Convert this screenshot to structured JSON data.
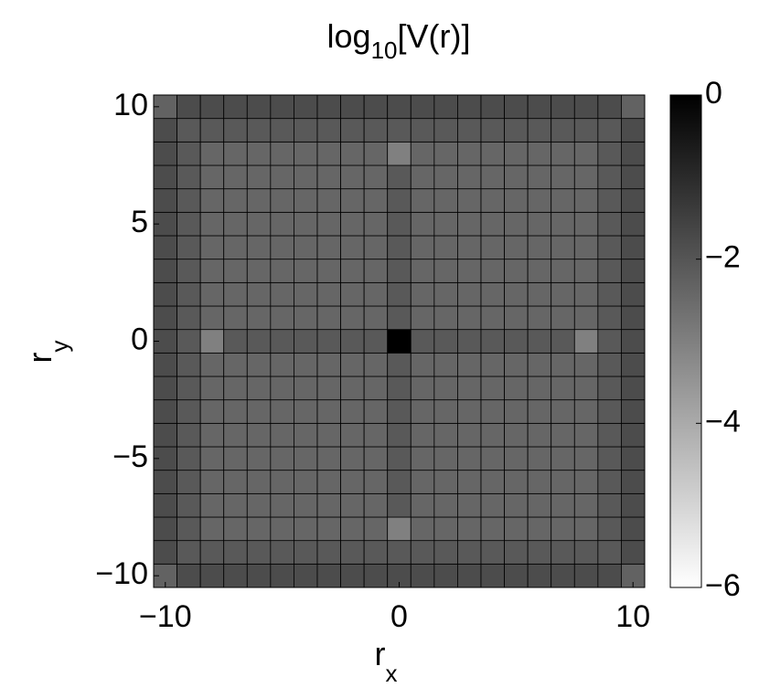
{
  "chart_data": {
    "type": "heatmap",
    "title": {
      "main": "log",
      "sub": "10",
      "rest": "[V(r)]"
    },
    "x_label": {
      "main": "r",
      "sub": "x"
    },
    "y_label": {
      "main": "r",
      "sub": "y"
    },
    "x": [
      -10,
      -9,
      -8,
      -7,
      -6,
      -5,
      -4,
      -3,
      -2,
      -1,
      0,
      1,
      2,
      3,
      4,
      5,
      6,
      7,
      8,
      9,
      10
    ],
    "y": [
      -10,
      -9,
      -8,
      -7,
      -6,
      -5,
      -4,
      -3,
      -2,
      -1,
      0,
      1,
      2,
      3,
      4,
      5,
      6,
      7,
      8,
      9,
      10
    ],
    "xlim": [
      -10.5,
      10.5
    ],
    "ylim": [
      -10.5,
      10.5
    ],
    "xticks": [
      {
        "value": -10,
        "label": "−10"
      },
      0,
      10
    ],
    "yticks": [
      {
        "value": -10,
        "label": "−10"
      },
      {
        "value": -5,
        "label": "−5"
      },
      0,
      5,
      10
    ],
    "colormap": "gray",
    "clim": [
      -6,
      0
    ],
    "cticks": [
      {
        "value": -6,
        "label": "−6"
      },
      {
        "value": -4,
        "label": "−4"
      },
      {
        "value": -2,
        "label": "−2"
      },
      0
    ],
    "z": [
      [
        -2.3,
        -1.8,
        -1.8,
        -1.8,
        -1.8,
        -1.8,
        -1.8,
        -1.8,
        -1.8,
        -1.8,
        -1.8,
        -1.8,
        -1.8,
        -1.8,
        -1.8,
        -1.8,
        -1.8,
        -1.8,
        -1.8,
        -1.8,
        -2.3
      ],
      [
        -1.8,
        -2.1,
        -2.1,
        -2.1,
        -2.1,
        -2.1,
        -2.1,
        -2.1,
        -2.1,
        -2.1,
        -2.1,
        -2.1,
        -2.1,
        -2.1,
        -2.1,
        -2.1,
        -2.1,
        -2.1,
        -2.1,
        -2.1,
        -1.8
      ],
      [
        -1.8,
        -2.1,
        -2.4,
        -2.4,
        -2.4,
        -2.4,
        -2.4,
        -2.4,
        -2.4,
        -2.4,
        -3.0,
        -2.4,
        -2.4,
        -2.4,
        -2.4,
        -2.4,
        -2.4,
        -2.4,
        -2.4,
        -2.1,
        -1.8
      ],
      [
        -1.8,
        -2.1,
        -2.4,
        -2.4,
        -2.4,
        -2.4,
        -2.4,
        -2.4,
        -2.4,
        -2.4,
        -2.1,
        -2.4,
        -2.4,
        -2.4,
        -2.4,
        -2.4,
        -2.4,
        -2.4,
        -2.4,
        -2.1,
        -1.8
      ],
      [
        -1.8,
        -2.1,
        -2.4,
        -2.4,
        -2.4,
        -2.4,
        -2.4,
        -2.4,
        -2.4,
        -2.4,
        -2.1,
        -2.4,
        -2.4,
        -2.4,
        -2.4,
        -2.4,
        -2.4,
        -2.4,
        -2.4,
        -2.1,
        -1.8
      ],
      [
        -1.8,
        -2.1,
        -2.4,
        -2.4,
        -2.4,
        -2.4,
        -2.4,
        -2.4,
        -2.4,
        -2.4,
        -2.1,
        -2.4,
        -2.4,
        -2.4,
        -2.4,
        -2.4,
        -2.4,
        -2.4,
        -2.4,
        -2.1,
        -1.8
      ],
      [
        -1.8,
        -2.1,
        -2.4,
        -2.4,
        -2.4,
        -2.4,
        -2.4,
        -2.4,
        -2.4,
        -2.4,
        -2.1,
        -2.4,
        -2.4,
        -2.4,
        -2.4,
        -2.4,
        -2.4,
        -2.4,
        -2.4,
        -2.1,
        -1.8
      ],
      [
        -1.8,
        -2.1,
        -2.4,
        -2.4,
        -2.4,
        -2.4,
        -2.4,
        -2.4,
        -2.4,
        -2.4,
        -2.1,
        -2.4,
        -2.4,
        -2.4,
        -2.4,
        -2.4,
        -2.4,
        -2.4,
        -2.4,
        -2.1,
        -1.8
      ],
      [
        -1.8,
        -2.1,
        -2.4,
        -2.4,
        -2.4,
        -2.4,
        -2.4,
        -2.4,
        -2.4,
        -2.4,
        -2.1,
        -2.4,
        -2.4,
        -2.4,
        -2.4,
        -2.4,
        -2.4,
        -2.4,
        -2.4,
        -2.1,
        -1.8
      ],
      [
        -1.8,
        -2.1,
        -2.4,
        -2.4,
        -2.4,
        -2.4,
        -2.4,
        -2.4,
        -2.4,
        -2.4,
        -2.1,
        -2.4,
        -2.4,
        -2.4,
        -2.4,
        -2.4,
        -2.4,
        -2.4,
        -2.4,
        -2.1,
        -1.8
      ],
      [
        -1.8,
        -2.1,
        -3.0,
        -2.1,
        -2.1,
        -2.1,
        -2.1,
        -2.1,
        -2.1,
        -2.1,
        0,
        -2.1,
        -2.1,
        -2.1,
        -2.1,
        -2.1,
        -2.1,
        -2.1,
        -3.0,
        -2.1,
        -1.8
      ],
      [
        -1.8,
        -2.1,
        -2.4,
        -2.4,
        -2.4,
        -2.4,
        -2.4,
        -2.4,
        -2.4,
        -2.4,
        -2.1,
        -2.4,
        -2.4,
        -2.4,
        -2.4,
        -2.4,
        -2.4,
        -2.4,
        -2.4,
        -2.1,
        -1.8
      ],
      [
        -1.8,
        -2.1,
        -2.4,
        -2.4,
        -2.4,
        -2.4,
        -2.4,
        -2.4,
        -2.4,
        -2.4,
        -2.1,
        -2.4,
        -2.4,
        -2.4,
        -2.4,
        -2.4,
        -2.4,
        -2.4,
        -2.4,
        -2.1,
        -1.8
      ],
      [
        -1.8,
        -2.1,
        -2.4,
        -2.4,
        -2.4,
        -2.4,
        -2.4,
        -2.4,
        -2.4,
        -2.4,
        -2.1,
        -2.4,
        -2.4,
        -2.4,
        -2.4,
        -2.4,
        -2.4,
        -2.4,
        -2.4,
        -2.1,
        -1.8
      ],
      [
        -1.8,
        -2.1,
        -2.4,
        -2.4,
        -2.4,
        -2.4,
        -2.4,
        -2.4,
        -2.4,
        -2.4,
        -2.1,
        -2.4,
        -2.4,
        -2.4,
        -2.4,
        -2.4,
        -2.4,
        -2.4,
        -2.4,
        -2.1,
        -1.8
      ],
      [
        -1.8,
        -2.1,
        -2.4,
        -2.4,
        -2.4,
        -2.4,
        -2.4,
        -2.4,
        -2.4,
        -2.4,
        -2.1,
        -2.4,
        -2.4,
        -2.4,
        -2.4,
        -2.4,
        -2.4,
        -2.4,
        -2.4,
        -2.1,
        -1.8
      ],
      [
        -1.8,
        -2.1,
        -2.4,
        -2.4,
        -2.4,
        -2.4,
        -2.4,
        -2.4,
        -2.4,
        -2.4,
        -2.1,
        -2.4,
        -2.4,
        -2.4,
        -2.4,
        -2.4,
        -2.4,
        -2.4,
        -2.4,
        -2.1,
        -1.8
      ],
      [
        -1.8,
        -2.1,
        -2.4,
        -2.4,
        -2.4,
        -2.4,
        -2.4,
        -2.4,
        -2.4,
        -2.4,
        -2.1,
        -2.4,
        -2.4,
        -2.4,
        -2.4,
        -2.4,
        -2.4,
        -2.4,
        -2.4,
        -2.1,
        -1.8
      ],
      [
        -1.8,
        -2.1,
        -2.4,
        -2.4,
        -2.4,
        -2.4,
        -2.4,
        -2.4,
        -2.4,
        -2.4,
        -3.0,
        -2.4,
        -2.4,
        -2.4,
        -2.4,
        -2.4,
        -2.4,
        -2.4,
        -2.4,
        -2.1,
        -1.8
      ],
      [
        -1.8,
        -2.1,
        -2.1,
        -2.1,
        -2.1,
        -2.1,
        -2.1,
        -2.1,
        -2.1,
        -2.1,
        -2.1,
        -2.1,
        -2.1,
        -2.1,
        -2.1,
        -2.1,
        -2.1,
        -2.1,
        -2.1,
        -2.1,
        -1.8
      ],
      [
        -2.3,
        -1.8,
        -1.8,
        -1.8,
        -1.8,
        -1.8,
        -1.8,
        -1.8,
        -1.8,
        -1.8,
        -1.8,
        -1.8,
        -1.8,
        -1.8,
        -1.8,
        -1.8,
        -1.8,
        -1.8,
        -1.8,
        -1.8,
        -2.3
      ]
    ]
  }
}
